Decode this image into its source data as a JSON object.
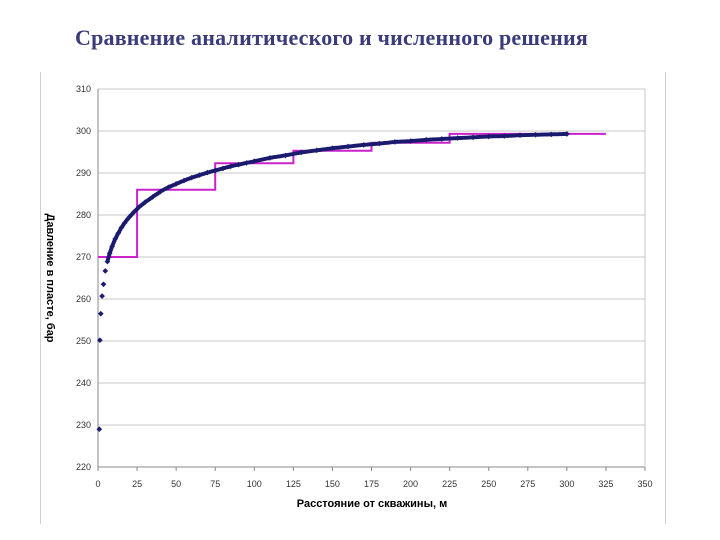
{
  "slide": {
    "title": "Сравнение аналитического и численного решения"
  },
  "chart_data": {
    "type": "scatter",
    "title": "",
    "xlabel": "Расстояние от скважины, м",
    "ylabel": "Давление в пласте, бар",
    "xlim": [
      0,
      350
    ],
    "ylim": [
      220,
      310
    ],
    "x_ticks": [
      0,
      25,
      50,
      75,
      100,
      125,
      150,
      175,
      200,
      225,
      250,
      275,
      300,
      325,
      350
    ],
    "y_ticks": [
      220,
      230,
      240,
      250,
      260,
      270,
      280,
      290,
      300,
      310
    ],
    "grid": "horizontal",
    "legend": "none",
    "colors": {
      "analytic": "#1a1a6e",
      "numeric": "#cc22cc",
      "grid": "#c8c8c8",
      "axis": "#888888"
    },
    "series": [
      {
        "style": "points",
        "x": [
          0.8,
          1.2,
          1.8,
          2.6,
          3.5,
          4.7,
          6,
          7.5,
          9,
          11,
          13,
          15,
          17,
          20,
          23,
          26,
          30,
          35,
          40,
          45,
          50,
          55,
          60,
          65,
          70,
          75,
          80,
          85,
          90,
          95,
          100,
          110,
          120,
          130,
          140,
          150,
          160,
          170,
          180,
          190,
          200,
          210,
          220,
          230,
          240,
          250,
          260,
          270,
          280,
          290,
          300
        ],
        "y": [
          229,
          250.2,
          256.5,
          260.7,
          263.5,
          266.7,
          268.9,
          270.9,
          272.5,
          274.3,
          275.7,
          277,
          278.1,
          279.5,
          280.7,
          281.8,
          283,
          284.3,
          285.6,
          286.6,
          287.4,
          288.2,
          288.9,
          289.5,
          290.1,
          290.6,
          291.1,
          291.6,
          292,
          292.4,
          292.8,
          293.6,
          294.2,
          294.9,
          295.4,
          295.9,
          296.3,
          296.7,
          297,
          297.4,
          297.6,
          297.9,
          298.1,
          298.3,
          298.5,
          298.7,
          298.8,
          299,
          299.1,
          299.2,
          299.3
        ]
      },
      {
        "style": "step",
        "x": [
          0,
          25,
          25,
          75,
          75,
          125,
          125,
          175,
          175,
          225,
          225,
          325
        ],
        "y": [
          270,
          270,
          286,
          286,
          292.3,
          292.3,
          295.3,
          295.3,
          297.2,
          297.2,
          299.3,
          299.3
        ]
      }
    ]
  }
}
